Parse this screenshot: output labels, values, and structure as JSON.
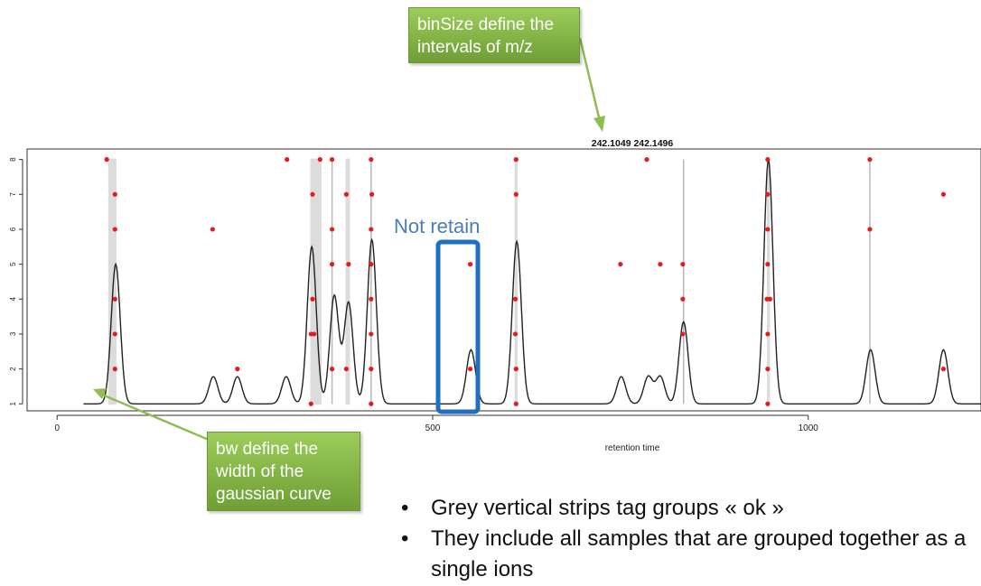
{
  "chart_data": {
    "type": "scatter",
    "title": "242.1049 242.1496",
    "xlabel": "retention time",
    "ylabel": "",
    "xlim": [
      -40,
      1230
    ],
    "ylim": [
      0.8,
      8.3
    ],
    "x_ticks": [
      0,
      500,
      1000
    ],
    "y_ticks": [
      1,
      2,
      3,
      4,
      5,
      6,
      7,
      8
    ],
    "grid": false,
    "series": [
      {
        "points": [
          [
            66,
            8
          ],
          [
            77,
            7
          ],
          [
            77,
            6
          ],
          [
            77,
            4
          ],
          [
            77,
            3
          ],
          [
            77,
            2
          ],
          [
            207,
            6
          ],
          [
            240,
            2
          ],
          [
            306,
            8
          ],
          [
            340,
            7
          ],
          [
            340,
            4
          ],
          [
            338,
            3
          ],
          [
            342,
            3
          ],
          [
            338,
            1
          ],
          [
            350,
            8
          ],
          [
            366,
            8
          ],
          [
            366,
            6
          ],
          [
            366,
            5
          ],
          [
            366,
            2
          ],
          [
            385,
            7
          ],
          [
            385,
            2
          ],
          [
            388,
            5
          ],
          [
            418,
            8
          ],
          [
            419,
            7
          ],
          [
            418,
            6
          ],
          [
            418,
            5
          ],
          [
            418,
            4
          ],
          [
            418,
            3
          ],
          [
            418,
            2
          ],
          [
            418,
            1
          ],
          [
            550,
            5
          ],
          [
            550,
            2
          ],
          [
            611,
            8
          ],
          [
            611,
            7
          ],
          [
            610,
            4
          ],
          [
            610,
            3
          ],
          [
            611,
            2
          ],
          [
            611,
            1
          ],
          [
            750,
            5
          ],
          [
            785,
            8
          ],
          [
            803,
            5
          ],
          [
            833,
            5
          ],
          [
            833,
            4
          ],
          [
            833,
            3
          ],
          [
            946,
            8
          ],
          [
            946,
            7
          ],
          [
            946,
            6
          ],
          [
            946,
            5
          ],
          [
            945,
            4
          ],
          [
            949,
            4
          ],
          [
            946,
            3
          ],
          [
            946,
            2
          ],
          [
            946,
            1
          ],
          [
            1082,
            8
          ],
          [
            1082,
            6
          ],
          [
            1180,
            7
          ],
          [
            1180,
            2
          ]
        ]
      }
    ],
    "density_curve": {
      "x_start": 35,
      "x_end": 1230,
      "baseline": 1,
      "peaks": [
        {
          "center": 78,
          "height": 4.0,
          "width": 6
        },
        {
          "center": 208,
          "height": 0.78,
          "width": 6
        },
        {
          "center": 240,
          "height": 0.78,
          "width": 6
        },
        {
          "center": 305,
          "height": 0.78,
          "width": 6
        },
        {
          "center": 339,
          "height": 4.5,
          "width": 6
        },
        {
          "center": 369,
          "height": 3.1,
          "width": 6
        },
        {
          "center": 388,
          "height": 2.9,
          "width": 6
        },
        {
          "center": 419,
          "height": 4.7,
          "width": 6
        },
        {
          "center": 551,
          "height": 1.55,
          "width": 6
        },
        {
          "center": 612,
          "height": 4.65,
          "width": 6
        },
        {
          "center": 751,
          "height": 0.78,
          "width": 6
        },
        {
          "center": 787,
          "height": 0.78,
          "width": 6
        },
        {
          "center": 803,
          "height": 0.78,
          "width": 6
        },
        {
          "center": 834,
          "height": 2.35,
          "width": 6
        },
        {
          "center": 947,
          "height": 7.0,
          "width": 6
        },
        {
          "center": 1083,
          "height": 1.55,
          "width": 6
        },
        {
          "center": 1180,
          "height": 1.55,
          "width": 6
        }
      ]
    },
    "group_strips": [
      [
        68,
        79
      ],
      [
        337,
        352
      ],
      [
        384,
        390
      ],
      [
        609,
        613
      ],
      [
        945,
        949
      ]
    ],
    "group_lines": [
      366,
      418,
      834,
      1082
    ]
  },
  "annotations": {
    "bin_size_note": "binSize define the intervals of m/z",
    "bw_note": "bw define the width of the gaussian curve",
    "not_retain": "Not retain"
  },
  "bullets": [
    "Grey vertical strips tag groups « ok »",
    "They include all samples that are grouped together as a single ions"
  ],
  "colors": {
    "points": "#e11d1d",
    "curve": "#222222",
    "strips": "#dcdcdc",
    "group_lines": "#b8b8b8",
    "highlight_box": "#1f6fc2",
    "callout_green": "#7fae3e",
    "arrow_green": "#8dbe4f"
  }
}
